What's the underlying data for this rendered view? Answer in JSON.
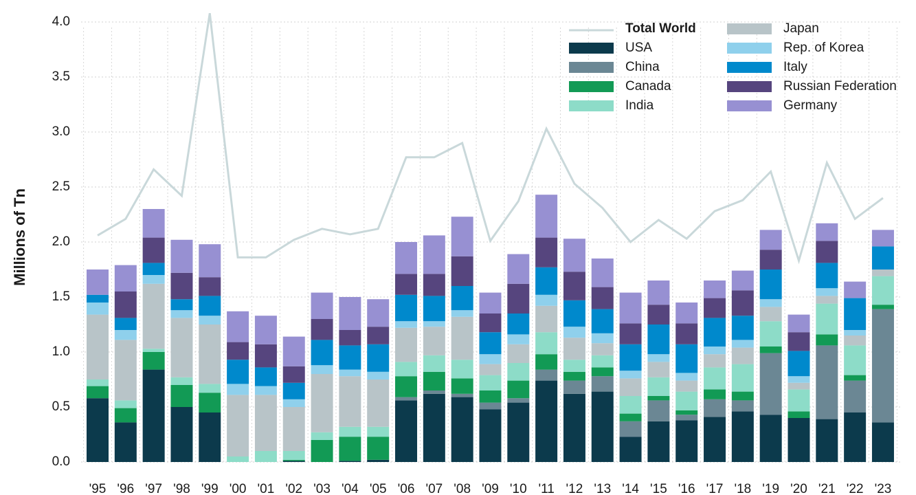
{
  "chart_data": {
    "type": "bar",
    "stacked": true,
    "y_label": "Millions of Tn",
    "categories": [
      "'95",
      "'96",
      "'97",
      "'98",
      "'99",
      "'00",
      "'01",
      "'02",
      "'03",
      "'04",
      "'05",
      "'06",
      "'07",
      "'08",
      "'09",
      "'10",
      "'11",
      "'12",
      "'13",
      "'14",
      "'15",
      "'16",
      "'17",
      "'18",
      "'19",
      "'20",
      "'21",
      "'22",
      "'23"
    ],
    "line": {
      "name": "Total World",
      "color": "#c9d8da",
      "values": [
        2.06,
        2.21,
        2.66,
        2.42,
        4.08,
        1.86,
        1.86,
        2.02,
        2.12,
        2.07,
        2.12,
        2.77,
        2.77,
        2.9,
        2.01,
        2.37,
        3.03,
        2.53,
        2.31,
        2.0,
        2.2,
        2.03,
        2.28,
        2.38,
        2.64,
        1.83,
        2.72,
        2.21,
        2.4
      ]
    },
    "series": [
      {
        "name": "USA",
        "color": "#0c3a4c",
        "values": [
          0.58,
          0.36,
          0.84,
          0.5,
          0.45,
          0,
          0,
          0.01,
          0,
          0.01,
          0.02,
          0.56,
          0.62,
          0.59,
          0.48,
          0.54,
          0.74,
          0.62,
          0.64,
          0.23,
          0.37,
          0.38,
          0.41,
          0.46,
          0.43,
          0.4,
          0.39,
          0.45,
          0.36
        ]
      },
      {
        "name": "China",
        "color": "#6b8794",
        "values": [
          0,
          0,
          0,
          0,
          0,
          0,
          0,
          0,
          0,
          0,
          0,
          0.03,
          0.03,
          0.03,
          0.06,
          0.04,
          0.1,
          0.12,
          0.14,
          0.14,
          0.19,
          0.05,
          0.16,
          0.1,
          0.56,
          0,
          0.67,
          0.29,
          1.03
        ]
      },
      {
        "name": "Canada",
        "color": "#129a55",
        "values": [
          0.11,
          0.13,
          0.16,
          0.2,
          0.18,
          0,
          0,
          0.01,
          0.2,
          0.22,
          0.21,
          0.19,
          0.17,
          0.14,
          0.11,
          0.16,
          0.14,
          0.08,
          0.08,
          0.07,
          0.04,
          0.04,
          0.09,
          0.08,
          0.06,
          0.06,
          0.1,
          0.05,
          0.04
        ]
      },
      {
        "name": "India",
        "color": "#8ddcc8",
        "values": [
          0.06,
          0.07,
          0.03,
          0.07,
          0.08,
          0.05,
          0.1,
          0.08,
          0.07,
          0.09,
          0.09,
          0.13,
          0.15,
          0.17,
          0.14,
          0.16,
          0.2,
          0.11,
          0.11,
          0.16,
          0.17,
          0.17,
          0.2,
          0.25,
          0.23,
          0.2,
          0.28,
          0.27,
          0.26
        ]
      },
      {
        "name": "Japan",
        "color": "#b8c4c8",
        "values": [
          0.59,
          0.55,
          0.59,
          0.54,
          0.54,
          0.56,
          0.51,
          0.4,
          0.53,
          0.46,
          0.43,
          0.31,
          0.26,
          0.39,
          0.1,
          0.17,
          0.24,
          0.2,
          0.11,
          0.16,
          0.14,
          0.1,
          0.12,
          0.15,
          0.13,
          0.06,
          0.07,
          0.09,
          0.06
        ]
      },
      {
        "name": "Rep. of Korea",
        "color": "#8fd0ec",
        "values": [
          0.11,
          0.09,
          0.08,
          0.07,
          0.08,
          0.1,
          0.08,
          0.07,
          0.08,
          0.06,
          0.07,
          0.06,
          0.05,
          0.06,
          0.09,
          0.09,
          0.1,
          0.1,
          0.09,
          0.07,
          0.07,
          0.07,
          0.07,
          0.07,
          0.07,
          0.06,
          0.07,
          0.05,
          0
        ]
      },
      {
        "name": "Italy",
        "color": "#0089cc",
        "values": [
          0.07,
          0.11,
          0.11,
          0.1,
          0.18,
          0.22,
          0.17,
          0.15,
          0.23,
          0.22,
          0.25,
          0.24,
          0.23,
          0.22,
          0.2,
          0.19,
          0.25,
          0.24,
          0.22,
          0.24,
          0.27,
          0.26,
          0.26,
          0.22,
          0.27,
          0.23,
          0.23,
          0.29,
          0.21
        ]
      },
      {
        "name": "Russian Federation",
        "color": "#56457e",
        "values": [
          0,
          0.24,
          0.23,
          0.24,
          0.17,
          0.16,
          0.21,
          0.15,
          0.19,
          0.14,
          0.16,
          0.19,
          0.2,
          0.27,
          0.17,
          0.27,
          0.27,
          0.26,
          0.2,
          0.19,
          0.18,
          0.19,
          0.18,
          0.23,
          0.18,
          0.17,
          0.2,
          0,
          0
        ]
      },
      {
        "name": "Germany",
        "color": "#9790d2",
        "values": [
          0.23,
          0.24,
          0.26,
          0.3,
          0.3,
          0.28,
          0.26,
          0.27,
          0.24,
          0.3,
          0.25,
          0.29,
          0.35,
          0.36,
          0.19,
          0.27,
          0.39,
          0.3,
          0.26,
          0.28,
          0.22,
          0.19,
          0.16,
          0.18,
          0.18,
          0.16,
          0.16,
          0.15,
          0.15
        ]
      }
    ],
    "ylim": [
      0,
      4.2
    ],
    "yticks": [
      {
        "value": 0,
        "label": "0.0"
      },
      {
        "value": 0.5,
        "label": "0.5"
      },
      {
        "value": 1,
        "label": "1.0"
      },
      {
        "value": 1.5,
        "label": "1.5"
      },
      {
        "value": 2,
        "label": "2.0"
      },
      {
        "value": 2.5,
        "label": "2.5"
      },
      {
        "value": 3,
        "label": "3.0"
      },
      {
        "value": 3.5,
        "label": "3.5"
      },
      {
        "value": 4,
        "label": "4.0"
      }
    ],
    "grid": true
  }
}
